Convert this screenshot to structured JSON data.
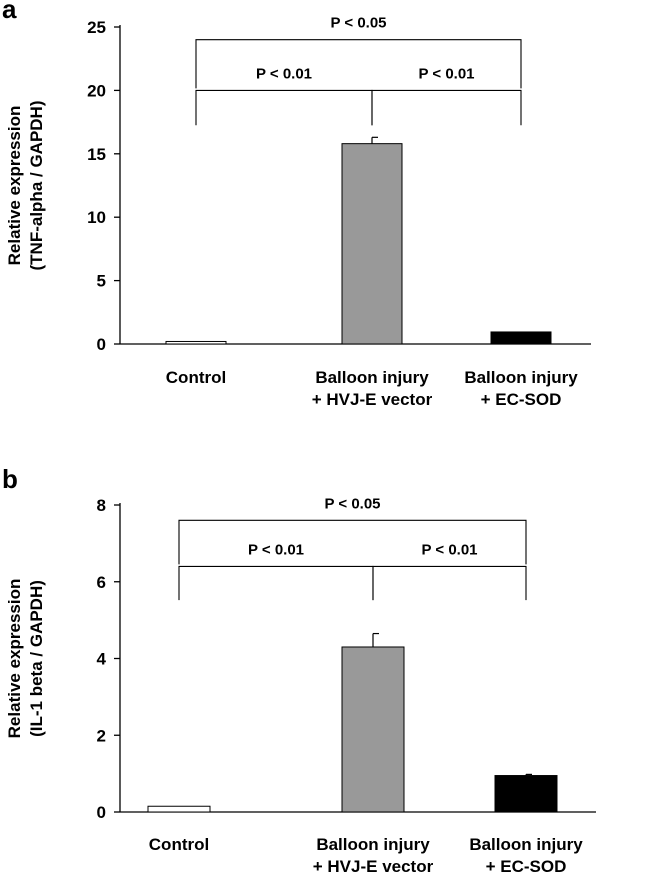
{
  "chart_data": [
    {
      "type": "bar",
      "panel_letter": "a",
      "title": "",
      "ylabel": [
        "Relative expression",
        "(TNF-alpha / GAPDH)"
      ],
      "xlabel": "",
      "ylim": [
        0,
        25
      ],
      "yticks": [
        0,
        5,
        10,
        15,
        20,
        25
      ],
      "categories": [
        [
          "Control"
        ],
        [
          "Balloon injury",
          "+ HVJ-E vector"
        ],
        [
          "Balloon injury",
          "+ EC-SOD"
        ]
      ],
      "values": [
        0.2,
        15.8,
        0.95
      ],
      "errors": [
        0.0,
        0.5,
        0.0
      ],
      "colors": [
        "#ffffff",
        "#999999",
        "#000000"
      ],
      "comparisons": [
        {
          "from": 0,
          "to": 1,
          "label": "P < 0.01",
          "at": 20.0,
          "top": 20.0
        },
        {
          "from": 1,
          "to": 2,
          "label": "P < 0.01",
          "at": 20.0,
          "top": 20.0
        },
        {
          "from": 0,
          "to": 2,
          "label": "P < 0.05",
          "at": 24.0,
          "top": 24.0
        }
      ]
    },
    {
      "type": "bar",
      "panel_letter": "b",
      "title": "",
      "ylabel": [
        "Relative expression",
        "(IL-1 beta / GAPDH)"
      ],
      "xlabel": "",
      "ylim": [
        0,
        8
      ],
      "yticks": [
        0,
        2,
        4,
        6,
        8
      ],
      "categories": [
        [
          "Control"
        ],
        [
          "Balloon injury",
          "+ HVJ-E vector"
        ],
        [
          "Balloon injury",
          "+ EC-SOD"
        ]
      ],
      "values": [
        0.15,
        4.3,
        0.95
      ],
      "errors": [
        0.0,
        0.35,
        0.03
      ],
      "colors": [
        "#ffffff",
        "#999999",
        "#000000"
      ],
      "comparisons": [
        {
          "from": 0,
          "to": 1,
          "label": "P < 0.01",
          "at": 6.4,
          "top": 6.4
        },
        {
          "from": 1,
          "to": 2,
          "label": "P < 0.01",
          "at": 6.4,
          "top": 6.4
        },
        {
          "from": 0,
          "to": 2,
          "label": "P < 0.05",
          "at": 7.6,
          "top": 7.6
        }
      ]
    }
  ]
}
